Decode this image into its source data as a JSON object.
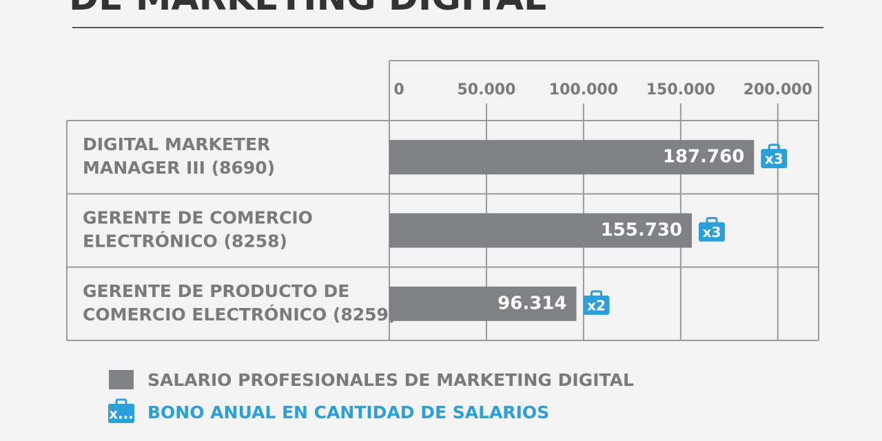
{
  "chart_data": {
    "type": "bar",
    "orientation": "horizontal",
    "title": "DE MARKETING DIGITAL",
    "categories": [
      [
        "DIGITAL MARKETER",
        "MANAGER III (8690)"
      ],
      [
        "GERENTE DE COMERCIO",
        "ELECTRÓNICO (8258)"
      ],
      [
        "GERENTE DE PRODUCTO DE",
        "COMERCIO ELECTRÓNICO (8259)"
      ]
    ],
    "series": [
      {
        "name": "SALARIO PROFESIONALES DE MARKETING DIGITAL",
        "color": "#808184",
        "values": [
          187760,
          155730,
          96314
        ],
        "value_labels": [
          "187.760",
          "155.730",
          "96.314"
        ]
      }
    ],
    "bonus": {
      "name": "BONO ANUAL EN CANTIDAD DE SALARIOS",
      "color": "#2a9fd8",
      "values": [
        3,
        3,
        2
      ],
      "value_labels": [
        "x3",
        "x3",
        "x2"
      ],
      "legend_icon_label": "x..."
    },
    "xlim": [
      0,
      221000
    ],
    "xticks": [
      0,
      {
        "value": 50000,
        "label": "50.000"
      },
      {
        "value": 100000,
        "label": "100.000"
      },
      {
        "value": 150000,
        "label": "150.000"
      },
      {
        "value": 200000,
        "label": "200.000"
      }
    ],
    "grid": true
  }
}
